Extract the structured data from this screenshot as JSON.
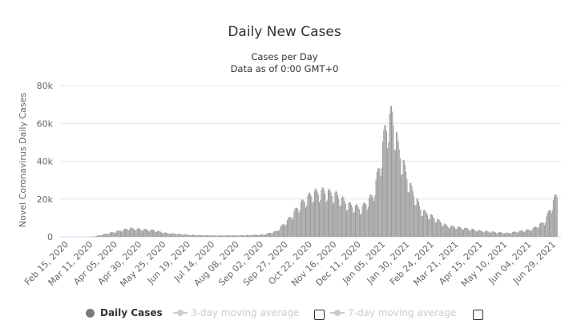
{
  "chart_title": "Daily New Cases",
  "subtitle_line1": "Cases per Day",
  "subtitle_line2": "Data as of 0:00 GMT+0",
  "legend": {
    "daily_cases": "Daily Cases",
    "three_day": "3-day moving average",
    "seven_day": "7-day moving average"
  },
  "colors": {
    "bars": "#999999",
    "legend_active": "#7a7a7a",
    "legend_inactive": "#cccccc",
    "grid": "#e6e6e6"
  },
  "chart_data": {
    "type": "bar",
    "title": "Daily New Cases",
    "subtitle": "Cases per Day",
    "ylabel": "Novel Coronavirus Daily Cases",
    "xlabel": "",
    "ylim": [
      0,
      80000
    ],
    "yticks": [
      0,
      20000,
      40000,
      60000,
      80000
    ],
    "ytick_labels": [
      "0",
      "20k",
      "40k",
      "60k",
      "80k"
    ],
    "xtick_labels": [
      "Feb 15, 2020",
      "Mar 11, 2020",
      "Apr 05, 2020",
      "Apr 30, 2020",
      "May 25, 2020",
      "Jun 19, 2020",
      "Jul 14, 2020",
      "Aug 08, 2020",
      "Sep 02, 2020",
      "Sep 27, 2020",
      "Oct 22, 2020",
      "Nov 16, 2020",
      "Dec 11, 2020",
      "Jan 05, 2021",
      "Jan 30, 2021",
      "Feb 24, 2021",
      "Mar 21, 2021",
      "Apr 15, 2021",
      "May 10, 2021",
      "Jun 04, 2021",
      "Jun 29, 2021"
    ],
    "grid": true,
    "legend_position": "bottom",
    "series": [
      {
        "name": "Daily Cases",
        "x": [
          "Feb 15, 2020",
          "Mar 11, 2020",
          "Mar 23, 2020",
          "Apr 05, 2020",
          "Apr 17, 2020",
          "Apr 30, 2020",
          "May 12, 2020",
          "May 25, 2020",
          "Jun 19, 2020",
          "Jul 14, 2020",
          "Aug 08, 2020",
          "Sep 02, 2020",
          "Sep 15, 2020",
          "Sep 27, 2020",
          "Oct 09, 2020",
          "Oct 22, 2020",
          "Nov 03, 2020",
          "Nov 16, 2020",
          "Nov 28, 2020",
          "Dec 11, 2020",
          "Dec 23, 2020",
          "Dec 30, 2020",
          "Jan 05, 2021",
          "Jan 12, 2021",
          "Jan 18, 2021",
          "Jan 30, 2021",
          "Feb 11, 2021",
          "Feb 24, 2021",
          "Mar 08, 2021",
          "Mar 21, 2021",
          "Apr 15, 2021",
          "May 10, 2021",
          "Jun 04, 2021",
          "Jun 17, 2021",
          "Jun 29, 2021"
        ],
        "values": [
          0,
          100,
          1500,
          3000,
          4500,
          4000,
          3500,
          2000,
          1000,
          700,
          800,
          1200,
          3000,
          9000,
          17000,
          23000,
          24000,
          22000,
          17000,
          15000,
          22000,
          38000,
          58000,
          65000,
          47000,
          27000,
          14000,
          10000,
          6000,
          5000,
          3000,
          2000,
          4000,
          8000,
          22000
        ]
      }
    ]
  }
}
